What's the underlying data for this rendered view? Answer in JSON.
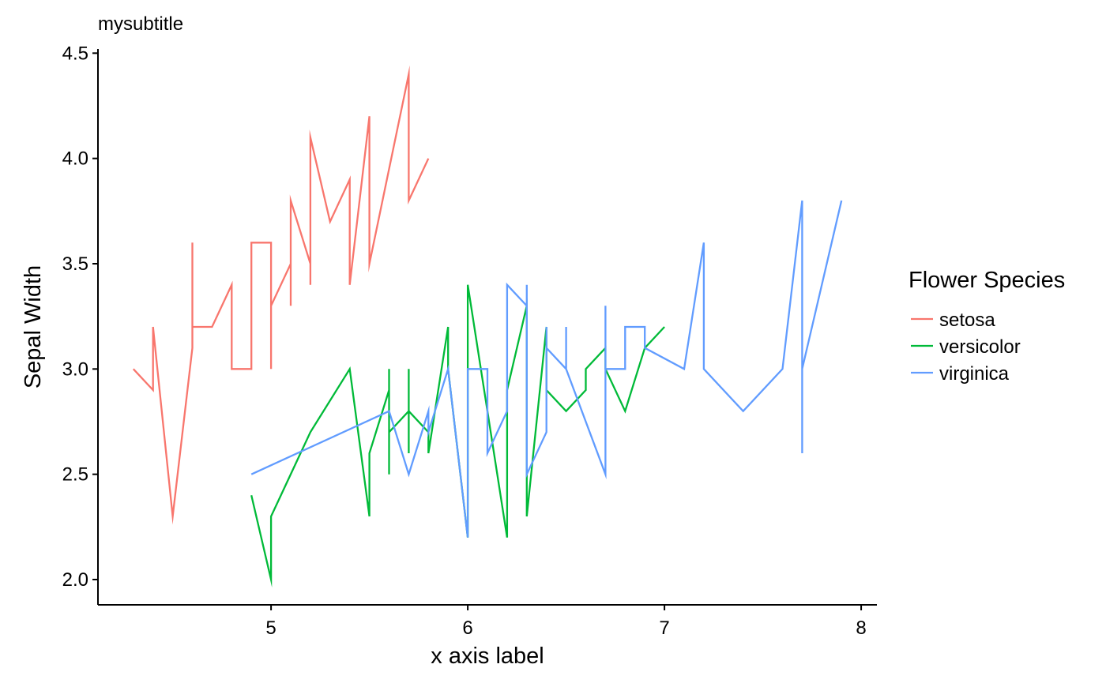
{
  "chart_data": {
    "type": "line",
    "title": "",
    "subtitle": "mysubtitle",
    "xlabel": "x axis label",
    "ylabel": "Sepal Width",
    "xlim": [
      4.12,
      8.08
    ],
    "ylim": [
      1.88,
      4.52
    ],
    "x_ticks": [
      5,
      6,
      7,
      8
    ],
    "x_tick_labels": [
      "5",
      "6",
      "7",
      "8"
    ],
    "y_ticks": [
      2.0,
      2.5,
      3.0,
      3.5,
      4.0,
      4.5
    ],
    "y_tick_labels": [
      "2.0",
      "2.5",
      "3.0",
      "3.5",
      "4.0",
      "4.5"
    ],
    "grid": false,
    "legend": {
      "title": "Flower Species",
      "position": "right"
    },
    "series": [
      {
        "name": "setosa",
        "color": "#F8766D",
        "points": [
          [
            4.3,
            3.0
          ],
          [
            4.4,
            2.9
          ],
          [
            4.4,
            3.2
          ],
          [
            4.5,
            2.3
          ],
          [
            4.6,
            3.1
          ],
          [
            4.6,
            3.6
          ],
          [
            4.6,
            3.2
          ],
          [
            4.7,
            3.2
          ],
          [
            4.8,
            3.4
          ],
          [
            4.8,
            3.0
          ],
          [
            4.9,
            3.0
          ],
          [
            4.9,
            3.6
          ],
          [
            5.0,
            3.6
          ],
          [
            5.0,
            3.0
          ],
          [
            5.0,
            3.3
          ],
          [
            5.1,
            3.5
          ],
          [
            5.1,
            3.3
          ],
          [
            5.1,
            3.8
          ],
          [
            5.2,
            3.5
          ],
          [
            5.2,
            3.4
          ],
          [
            5.2,
            4.1
          ],
          [
            5.3,
            3.7
          ],
          [
            5.4,
            3.9
          ],
          [
            5.4,
            3.4
          ],
          [
            5.5,
            4.2
          ],
          [
            5.5,
            3.5
          ],
          [
            5.7,
            4.4
          ],
          [
            5.7,
            3.8
          ],
          [
            5.8,
            4.0
          ]
        ]
      },
      {
        "name": "versicolor",
        "color": "#00BA38",
        "points": [
          [
            4.9,
            2.4
          ],
          [
            5.0,
            2.0
          ],
          [
            5.0,
            2.3
          ],
          [
            5.2,
            2.7
          ],
          [
            5.4,
            3.0
          ],
          [
            5.5,
            2.3
          ],
          [
            5.5,
            2.6
          ],
          [
            5.6,
            2.9
          ],
          [
            5.6,
            3.0
          ],
          [
            5.6,
            2.5
          ],
          [
            5.6,
            2.7
          ],
          [
            5.7,
            2.8
          ],
          [
            5.7,
            3.0
          ],
          [
            5.7,
            2.6
          ],
          [
            5.7,
            2.8
          ],
          [
            5.8,
            2.7
          ],
          [
            5.8,
            2.6
          ],
          [
            5.9,
            3.2
          ],
          [
            5.9,
            3.0
          ],
          [
            6.0,
            2.2
          ],
          [
            6.0,
            3.4
          ],
          [
            6.1,
            2.8
          ],
          [
            6.2,
            2.2
          ],
          [
            6.2,
            2.9
          ],
          [
            6.3,
            3.3
          ],
          [
            6.3,
            2.3
          ],
          [
            6.4,
            3.2
          ],
          [
            6.4,
            2.9
          ],
          [
            6.5,
            2.8
          ],
          [
            6.6,
            2.9
          ],
          [
            6.6,
            3.0
          ],
          [
            6.7,
            3.1
          ],
          [
            6.7,
            3.0
          ],
          [
            6.8,
            2.8
          ],
          [
            6.9,
            3.1
          ],
          [
            7.0,
            3.2
          ]
        ]
      },
      {
        "name": "virginica",
        "color": "#619CFF",
        "points": [
          [
            4.9,
            2.5
          ],
          [
            5.6,
            2.8
          ],
          [
            5.7,
            2.5
          ],
          [
            5.8,
            2.8
          ],
          [
            5.8,
            2.7
          ],
          [
            5.9,
            3.0
          ],
          [
            6.0,
            2.2
          ],
          [
            6.0,
            3.0
          ],
          [
            6.1,
            3.0
          ],
          [
            6.1,
            2.6
          ],
          [
            6.2,
            2.8
          ],
          [
            6.2,
            3.4
          ],
          [
            6.3,
            3.3
          ],
          [
            6.3,
            3.4
          ],
          [
            6.3,
            2.5
          ],
          [
            6.4,
            2.7
          ],
          [
            6.4,
            3.2
          ],
          [
            6.4,
            3.1
          ],
          [
            6.5,
            3.0
          ],
          [
            6.5,
            3.2
          ],
          [
            6.5,
            3.0
          ],
          [
            6.7,
            2.5
          ],
          [
            6.7,
            3.3
          ],
          [
            6.7,
            3.0
          ],
          [
            6.8,
            3.0
          ],
          [
            6.8,
            3.2
          ],
          [
            6.9,
            3.2
          ],
          [
            6.9,
            3.1
          ],
          [
            7.1,
            3.0
          ],
          [
            7.2,
            3.6
          ],
          [
            7.2,
            3.0
          ],
          [
            7.4,
            2.8
          ],
          [
            7.6,
            3.0
          ],
          [
            7.7,
            3.8
          ],
          [
            7.7,
            2.6
          ],
          [
            7.7,
            3.0
          ],
          [
            7.9,
            3.8
          ]
        ]
      }
    ]
  }
}
